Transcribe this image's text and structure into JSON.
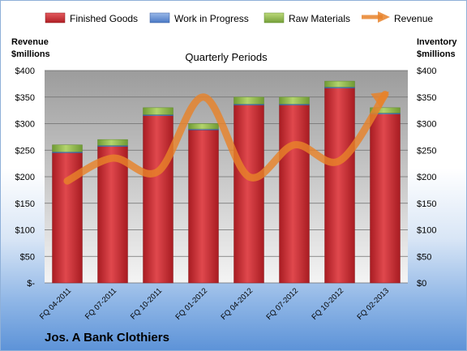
{
  "chart_data": {
    "type": "bar",
    "title": "Quarterly Periods",
    "company": "Jos. A Bank Clothiers",
    "left_axis_title": [
      "Revenue",
      "$millions"
    ],
    "right_axis_title": [
      "Inventory",
      "$millions"
    ],
    "categories": [
      "FQ 04-2011",
      "FQ 07-2011",
      "FQ 10-2011",
      "FQ 01-2012",
      "FQ 04-2012",
      "FQ 07-2012",
      "FQ 10-2012",
      "FQ 02-2013"
    ],
    "series": [
      {
        "name": "Finished Goods",
        "type": "stacked-bar",
        "color": "#c0272d",
        "values": [
          245,
          257,
          315,
          288,
          335,
          335,
          367,
          318
        ]
      },
      {
        "name": "Work in Progress",
        "type": "stacked-bar",
        "color": "#4a79c4",
        "values": [
          2,
          2,
          2,
          2,
          2,
          2,
          2,
          2
        ]
      },
      {
        "name": "Raw Materials",
        "type": "stacked-bar",
        "color": "#8cb44a",
        "values": [
          13,
          11,
          13,
          10,
          13,
          13,
          11,
          10
        ]
      },
      {
        "name": "Revenue",
        "type": "line",
        "color": "#e8822a",
        "values": [
          192,
          235,
          210,
          350,
          200,
          260,
          230,
          355
        ]
      }
    ],
    "left_ticks": [
      "$-",
      "$50",
      "$100",
      "$150",
      "$200",
      "$250",
      "$300",
      "$350",
      "$400"
    ],
    "right_ticks": [
      "$0",
      "$50",
      "$100",
      "$150",
      "$200",
      "$250",
      "$300",
      "$350",
      "$400"
    ],
    "ylim": [
      0,
      400
    ],
    "grid": true,
    "legend_position": "top"
  }
}
